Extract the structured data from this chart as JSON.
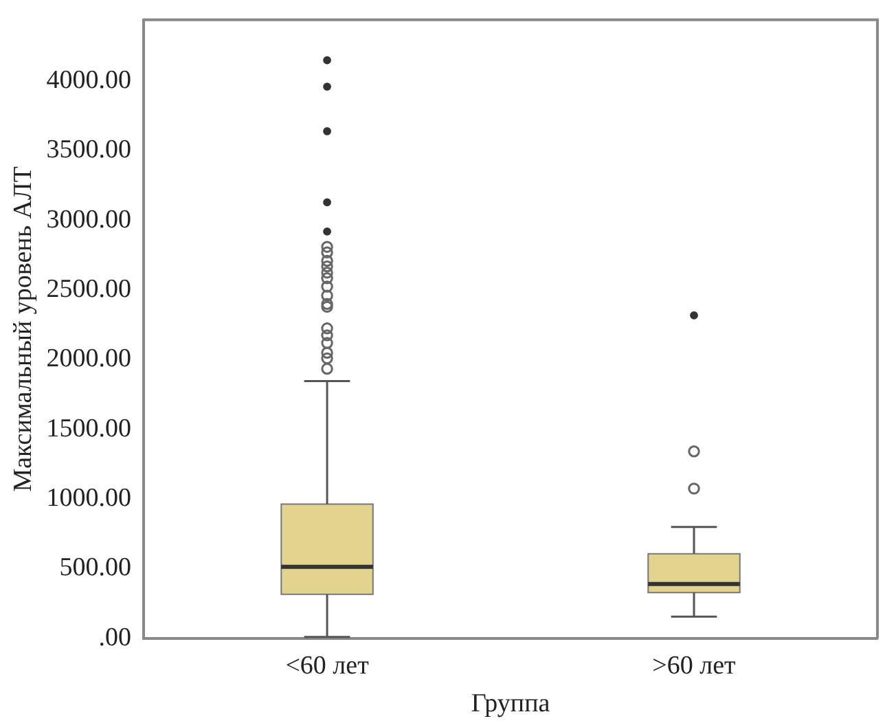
{
  "chart_data": {
    "type": "box",
    "xlabel": "Группа",
    "ylabel": "Максимальный уровень АЛТ",
    "categories": [
      "<60 лет",
      ">60 лет"
    ],
    "color": "#e2d48e",
    "boxes": [
      {
        "low": 10,
        "q1": 316,
        "median": 513,
        "q3": 964,
        "high": 1846,
        "outliers": [
          4150,
          3960,
          3640,
          3130,
          2920,
          2810,
          2770,
          2710,
          2670,
          2625,
          2585,
          2525,
          2460,
          2400,
          2380,
          2225,
          2175,
          2120,
          2050,
          2010,
          1935
        ]
      },
      {
        "low": 156,
        "q1": 328,
        "median": 390,
        "q3": 607,
        "high": 800,
        "outliers": [
          2318,
          1342,
          1075
        ]
      }
    ],
    "ylim": [
      0,
      4440
    ],
    "yticks": [
      {
        "value": 0,
        "label": ".00"
      },
      {
        "value": 500,
        "label": "500.00"
      },
      {
        "value": 1000,
        "label": "1000.00"
      },
      {
        "value": 1500,
        "label": "1500.00"
      },
      {
        "value": 2000,
        "label": "2000.00"
      },
      {
        "value": 2500,
        "label": "2500.00"
      },
      {
        "value": 3000,
        "label": "3000.00"
      },
      {
        "value": 3500,
        "label": "3500.00"
      },
      {
        "value": 4000,
        "label": "4000.00"
      }
    ],
    "grid": false,
    "legend": false,
    "marker": "circle"
  }
}
